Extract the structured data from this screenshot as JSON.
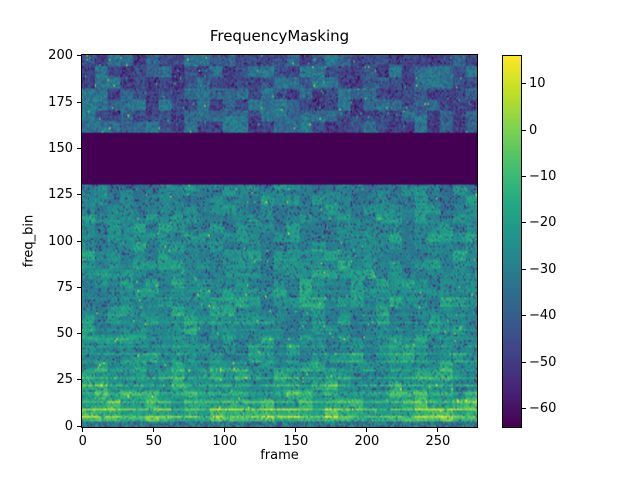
{
  "chart_data": {
    "type": "heatmap",
    "title": "FrequencyMasking",
    "xlabel": "frame",
    "ylabel": "freq_bin",
    "x_ticks": [
      0,
      50,
      100,
      150,
      200,
      250
    ],
    "x_tick_labels": [
      "0",
      "50",
      "100",
      "150",
      "200",
      "250"
    ],
    "y_ticks": [
      0,
      25,
      50,
      75,
      100,
      125,
      150,
      175,
      200
    ],
    "y_tick_labels": [
      "0",
      "25",
      "50",
      "75",
      "100",
      "125",
      "150",
      "175",
      "200"
    ],
    "x_range": [
      -0.5,
      277.5
    ],
    "y_range": [
      -0.5,
      200.5
    ],
    "n_frames": 278,
    "n_bins": 201,
    "value_range": [
      -64,
      16
    ],
    "colormap": "viridis",
    "colormap_stops": [
      "#440154",
      "#482475",
      "#414487",
      "#355f8d",
      "#2a788e",
      "#21918c",
      "#22a884",
      "#44bf70",
      "#7ad151",
      "#bddf26",
      "#fde725"
    ],
    "colorbar_ticks": [
      10,
      0,
      -10,
      -20,
      -30,
      -40,
      -50,
      -60
    ],
    "colorbar_tick_labels": [
      "10",
      "0",
      "−10",
      "−20",
      "−30",
      "−40",
      "−50",
      "−60"
    ],
    "masked_band": {
      "start_bin": 131,
      "end_bin": 158,
      "masked_value_db": -64
    },
    "background_color": "#ffffff",
    "mask_color": "#440154",
    "legend": "colorbar-right",
    "grid": false,
    "texture_seed": 7
  }
}
